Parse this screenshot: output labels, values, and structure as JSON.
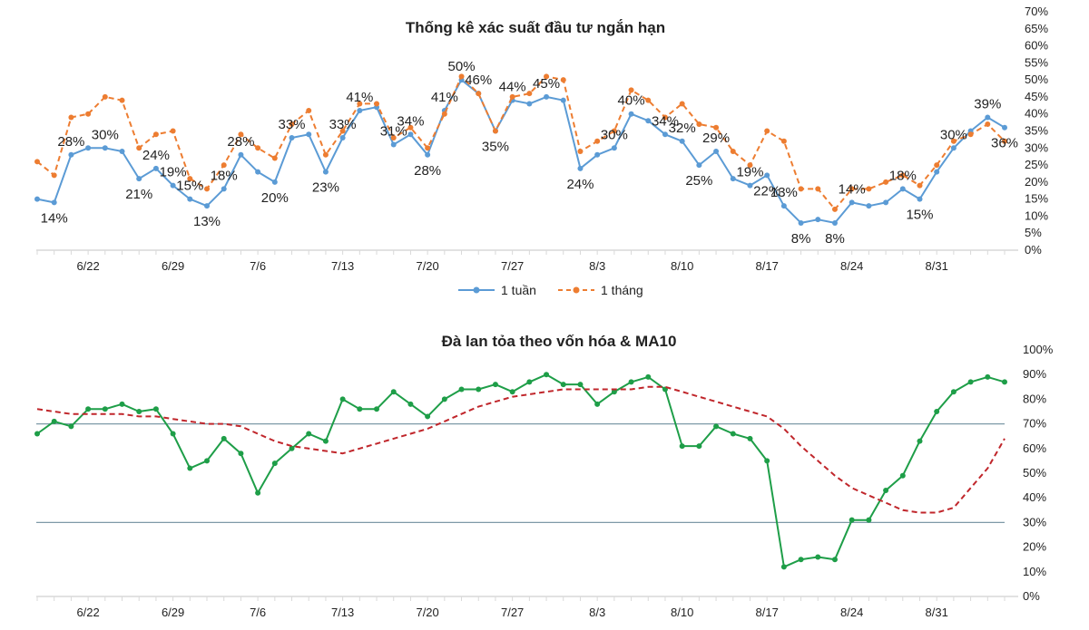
{
  "chart_data": [
    {
      "type": "line",
      "title": "Thống kê xác suất đầu tư ngắn hạn",
      "xlabel": "",
      "ylabel": "",
      "ylim": [
        0,
        70
      ],
      "ytick_step": 5,
      "y_format": "percent",
      "y_axis_position": "right",
      "grid": false,
      "legend_position": "bottom-center",
      "x_tick_labels": [
        {
          "label": "6/22",
          "index": 3
        },
        {
          "label": "6/29",
          "index": 8
        },
        {
          "label": "7/6",
          "index": 13
        },
        {
          "label": "7/13",
          "index": 18
        },
        {
          "label": "7/20",
          "index": 23
        },
        {
          "label": "7/27",
          "index": 28
        },
        {
          "label": "8/3",
          "index": 33
        },
        {
          "label": "8/10",
          "index": 38
        },
        {
          "label": "8/17",
          "index": 43
        },
        {
          "label": "8/24",
          "index": 48
        },
        {
          "label": "8/31",
          "index": 53
        }
      ],
      "series": [
        {
          "name": "1 tuần",
          "color": "#5b9bd5",
          "style": "solid",
          "marker": "circle",
          "values": [
            15,
            14,
            28,
            30,
            30,
            29,
            21,
            24,
            19,
            15,
            13,
            18,
            28,
            23,
            20,
            33,
            34,
            23,
            33,
            41,
            42,
            31,
            34,
            28,
            41,
            50,
            46,
            35,
            44,
            43,
            45,
            44,
            24,
            28,
            30,
            40,
            38,
            34,
            32,
            25,
            29,
            21,
            19,
            22,
            13,
            8,
            9,
            8,
            14,
            13,
            14,
            18,
            15,
            23,
            30,
            35,
            39,
            36
          ]
        },
        {
          "name": "1 tháng",
          "color": "#ed7d31",
          "style": "dashed",
          "marker": "circle",
          "values": [
            26,
            22,
            39,
            40,
            45,
            44,
            30,
            34,
            35,
            21,
            18,
            25,
            34,
            30,
            27,
            37,
            41,
            28,
            35,
            43,
            43,
            33,
            36,
            30,
            40,
            51,
            46,
            35,
            45,
            46,
            51,
            50,
            29,
            32,
            35,
            47,
            44,
            39,
            43,
            37,
            36,
            29,
            25,
            35,
            32,
            18,
            18,
            12,
            18,
            18,
            20,
            22,
            19,
            25,
            32,
            34,
            37,
            32
          ]
        }
      ],
      "data_labels": [
        {
          "series": 0,
          "index": 1,
          "text": "14%",
          "pos": "below"
        },
        {
          "series": 0,
          "index": 2,
          "text": "28%",
          "pos": "above"
        },
        {
          "series": 0,
          "index": 4,
          "text": "30%",
          "pos": "above"
        },
        {
          "series": 0,
          "index": 6,
          "text": "21%",
          "pos": "below"
        },
        {
          "series": 0,
          "index": 7,
          "text": "24%",
          "pos": "above"
        },
        {
          "series": 0,
          "index": 8,
          "text": "19%",
          "pos": "above"
        },
        {
          "series": 0,
          "index": 9,
          "text": "15%",
          "pos": "above"
        },
        {
          "series": 0,
          "index": 10,
          "text": "13%",
          "pos": "below"
        },
        {
          "series": 0,
          "index": 11,
          "text": "18%",
          "pos": "above"
        },
        {
          "series": 0,
          "index": 12,
          "text": "28%",
          "pos": "above"
        },
        {
          "series": 0,
          "index": 14,
          "text": "20%",
          "pos": "below"
        },
        {
          "series": 0,
          "index": 15,
          "text": "33%",
          "pos": "above"
        },
        {
          "series": 0,
          "index": 17,
          "text": "23%",
          "pos": "below"
        },
        {
          "series": 0,
          "index": 18,
          "text": "33%",
          "pos": "above"
        },
        {
          "series": 0,
          "index": 19,
          "text": "41%",
          "pos": "above"
        },
        {
          "series": 0,
          "index": 21,
          "text": "31%",
          "pos": "above"
        },
        {
          "series": 0,
          "index": 22,
          "text": "34%",
          "pos": "above"
        },
        {
          "series": 0,
          "index": 23,
          "text": "28%",
          "pos": "below"
        },
        {
          "series": 0,
          "index": 24,
          "text": "41%",
          "pos": "above"
        },
        {
          "series": 0,
          "index": 25,
          "text": "50%",
          "pos": "above"
        },
        {
          "series": 0,
          "index": 26,
          "text": "46%",
          "pos": "above"
        },
        {
          "series": 0,
          "index": 27,
          "text": "35%",
          "pos": "below"
        },
        {
          "series": 0,
          "index": 28,
          "text": "44%",
          "pos": "above"
        },
        {
          "series": 0,
          "index": 30,
          "text": "45%",
          "pos": "above"
        },
        {
          "series": 0,
          "index": 32,
          "text": "24%",
          "pos": "below"
        },
        {
          "series": 0,
          "index": 34,
          "text": "30%",
          "pos": "above"
        },
        {
          "series": 0,
          "index": 35,
          "text": "40%",
          "pos": "above"
        },
        {
          "series": 0,
          "index": 37,
          "text": "34%",
          "pos": "above"
        },
        {
          "series": 0,
          "index": 38,
          "text": "32%",
          "pos": "above"
        },
        {
          "series": 0,
          "index": 39,
          "text": "25%",
          "pos": "below"
        },
        {
          "series": 0,
          "index": 40,
          "text": "29%",
          "pos": "above"
        },
        {
          "series": 0,
          "index": 42,
          "text": "19%",
          "pos": "above"
        },
        {
          "series": 0,
          "index": 43,
          "text": "22%",
          "pos": "below"
        },
        {
          "series": 0,
          "index": 44,
          "text": "13%",
          "pos": "above"
        },
        {
          "series": 0,
          "index": 45,
          "text": "8%",
          "pos": "below"
        },
        {
          "series": 0,
          "index": 47,
          "text": "8%",
          "pos": "below"
        },
        {
          "series": 0,
          "index": 48,
          "text": "14%",
          "pos": "above"
        },
        {
          "series": 0,
          "index": 51,
          "text": "18%",
          "pos": "above"
        },
        {
          "series": 0,
          "index": 52,
          "text": "15%",
          "pos": "below"
        },
        {
          "series": 0,
          "index": 54,
          "text": "30%",
          "pos": "above"
        },
        {
          "series": 0,
          "index": 56,
          "text": "39%",
          "pos": "above"
        },
        {
          "series": 0,
          "index": 57,
          "text": "36%",
          "pos": "below"
        }
      ]
    },
    {
      "type": "line",
      "title": "Đà lan tỏa theo vốn hóa & MA10",
      "xlabel": "",
      "ylabel": "",
      "ylim": [
        0,
        100
      ],
      "ytick_step": 10,
      "y_format": "percent",
      "y_axis_position": "right",
      "grid": false,
      "reference_lines": [
        30,
        70
      ],
      "reference_color": "#7f9aa8",
      "legend_position": "none",
      "x_tick_labels": [
        {
          "label": "6/22",
          "index": 3
        },
        {
          "label": "6/29",
          "index": 8
        },
        {
          "label": "7/6",
          "index": 13
        },
        {
          "label": "7/13",
          "index": 18
        },
        {
          "label": "7/20",
          "index": 23
        },
        {
          "label": "7/27",
          "index": 28
        },
        {
          "label": "8/3",
          "index": 33
        },
        {
          "label": "8/10",
          "index": 38
        },
        {
          "label": "8/17",
          "index": 43
        },
        {
          "label": "8/24",
          "index": 48
        },
        {
          "label": "8/31",
          "index": 53
        }
      ],
      "series": [
        {
          "name": "Đà lan tỏa",
          "color": "#1e9e48",
          "style": "solid",
          "marker": "circle",
          "values": [
            66,
            71,
            69,
            76,
            76,
            78,
            75,
            76,
            66,
            52,
            55,
            64,
            58,
            42,
            54,
            60,
            66,
            63,
            80,
            76,
            76,
            83,
            78,
            73,
            80,
            84,
            84,
            86,
            83,
            87,
            90,
            86,
            86,
            78,
            83,
            87,
            89,
            84,
            61,
            61,
            69,
            66,
            64,
            55,
            12,
            15,
            16,
            15,
            31,
            31,
            43,
            49,
            63,
            75,
            83,
            87,
            89,
            87
          ]
        },
        {
          "name": "MA10",
          "color": "#c0262b",
          "style": "dashed",
          "marker": "none",
          "values": [
            76,
            75,
            74,
            74,
            74,
            74,
            73,
            73,
            72,
            71,
            70,
            70,
            69,
            66,
            63,
            61,
            60,
            59,
            58,
            60,
            62,
            64,
            66,
            68,
            71,
            74,
            77,
            79,
            81,
            82,
            83,
            84,
            84,
            84,
            84,
            84,
            85,
            85,
            83,
            81,
            79,
            77,
            75,
            73,
            68,
            61,
            55,
            49,
            44,
            41,
            38,
            35,
            34,
            34,
            36,
            44,
            52,
            64
          ]
        }
      ]
    }
  ]
}
